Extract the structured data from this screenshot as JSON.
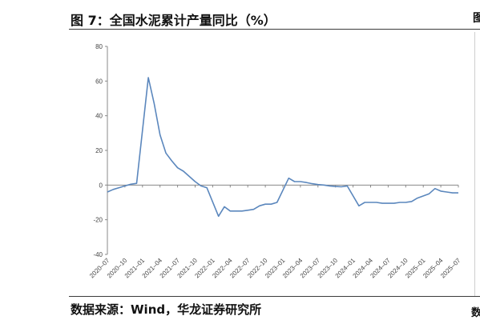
{
  "figure": {
    "title": "图 7：全国水泥累计产量同比（%）",
    "source": "数据来源：Wind，华龙证券研究所",
    "right_edge_glyph": "图",
    "source_edge_glyph": "数"
  },
  "chart_data": {
    "type": "line",
    "title": "",
    "xlabel": "",
    "ylabel": "",
    "ylim": [
      -40,
      80
    ],
    "yticks": [
      -40,
      -20,
      0,
      20,
      40,
      60,
      80
    ],
    "grid": false,
    "legend": "none",
    "x_tick_labels": [
      "2020–07",
      "2020–10",
      "2021–01",
      "2021–04",
      "2021–07",
      "2021–10",
      "2022–01",
      "2022–04",
      "2022–07",
      "2022–10",
      "2023–01",
      "2023–04",
      "2023–07",
      "2023–10",
      "2024–01",
      "2024–04",
      "2024–07",
      "2024–10",
      "2025–01",
      "2025–04",
      "2025–07"
    ],
    "series": [
      {
        "color": "#5b87bd",
        "x": [
          "2020-07",
          "2020-08",
          "2020-09",
          "2020-10",
          "2020-11",
          "2020-12",
          "2021-02",
          "2021-03",
          "2021-04",
          "2021-05",
          "2021-06",
          "2021-07",
          "2021-08",
          "2021-09",
          "2021-10",
          "2021-11",
          "2021-12",
          "2022-02",
          "2022-03",
          "2022-04",
          "2022-05",
          "2022-06",
          "2022-07",
          "2022-08",
          "2022-09",
          "2022-10",
          "2022-11",
          "2022-12",
          "2023-02",
          "2023-03",
          "2023-04",
          "2023-05",
          "2023-06",
          "2023-07",
          "2023-08",
          "2023-09",
          "2023-10",
          "2023-11",
          "2023-12",
          "2024-02",
          "2024-03",
          "2024-04",
          "2024-05",
          "2024-06",
          "2024-07",
          "2024-08",
          "2024-09",
          "2024-10",
          "2024-11",
          "2024-12",
          "2025-02",
          "2025-03",
          "2025-04",
          "2025-05",
          "2025-06",
          "2025-07"
        ],
        "values": [
          -4,
          -2.5,
          -1.5,
          -0.5,
          0.5,
          1,
          62,
          47,
          29,
          18.5,
          14,
          10,
          8,
          5,
          2,
          -0.5,
          -1.5,
          -18,
          -12.5,
          -15,
          -15,
          -15,
          -14.5,
          -14,
          -12,
          -11,
          -11,
          -10,
          4,
          2,
          2,
          1.5,
          0.8,
          0.3,
          0,
          -0.5,
          -0.8,
          -1,
          -0.5,
          -12,
          -10,
          -10,
          -10,
          -10.5,
          -10.5,
          -10.5,
          -10,
          -10,
          -9.5,
          -7.5,
          -5,
          -2,
          -3.5,
          -4,
          -4.5,
          -4.5
        ]
      }
    ]
  }
}
